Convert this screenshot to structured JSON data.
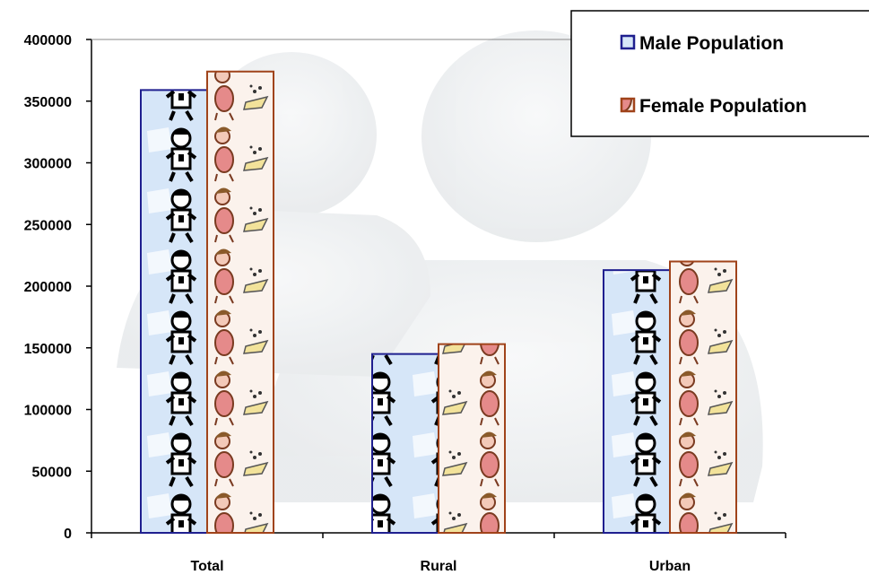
{
  "chart_data": {
    "type": "bar",
    "categories": [
      "Total",
      "Rural",
      "Urban"
    ],
    "series": [
      {
        "name": "Male Population",
        "values": [
          359000,
          145000,
          213000
        ],
        "stroke": "#1f1f8f",
        "fill": "#cfe1f6"
      },
      {
        "name": "Female Population",
        "values": [
          374000,
          153000,
          220000
        ],
        "stroke": "#a0431a",
        "fill": "#f6e6dc"
      }
    ],
    "ylim": [
      0,
      400000
    ],
    "yticks": [
      0,
      50000,
      100000,
      150000,
      200000,
      250000,
      300000,
      350000,
      400000
    ],
    "legend_position": "top-right",
    "grid": false
  }
}
